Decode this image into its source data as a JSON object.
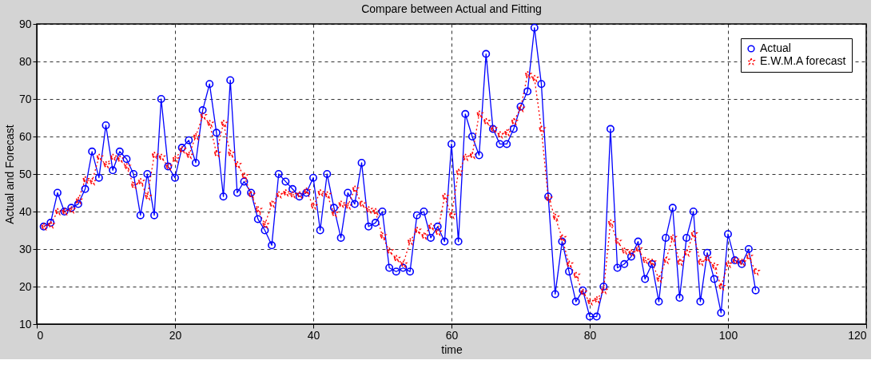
{
  "chart_data": {
    "type": "line",
    "title": "Compare between Actual and Fitting",
    "xlabel": "time",
    "ylabel": "Actual and Forecast",
    "x": [
      1,
      2,
      3,
      4,
      5,
      6,
      7,
      8,
      9,
      10,
      11,
      12,
      13,
      14,
      15,
      16,
      17,
      18,
      19,
      20,
      21,
      22,
      23,
      24,
      25,
      26,
      27,
      28,
      29,
      30,
      31,
      32,
      33,
      34,
      35,
      36,
      37,
      38,
      39,
      40,
      41,
      42,
      43,
      44,
      45,
      46,
      47,
      48,
      49,
      50,
      51,
      52,
      53,
      54,
      55,
      56,
      57,
      58,
      59,
      60,
      61,
      62,
      63,
      64,
      65,
      66,
      67,
      68,
      69,
      70,
      71,
      72,
      73,
      74,
      75,
      76,
      77,
      78,
      79,
      80,
      81,
      82,
      83,
      84,
      85,
      86,
      87,
      88,
      89,
      90,
      91,
      92,
      93,
      94,
      95,
      96,
      97,
      98,
      99,
      100,
      101,
      102,
      103,
      104
    ],
    "series": [
      {
        "name": "Actual",
        "color": "#0000ff",
        "marker": "circle",
        "line_style": "solid",
        "values": [
          36,
          37,
          45,
          40,
          41,
          42,
          46,
          56,
          49,
          63,
          51,
          56,
          54,
          50,
          39,
          50,
          39,
          70,
          52,
          49,
          57,
          59,
          53,
          67,
          74,
          61,
          44,
          75,
          45,
          48,
          45,
          38,
          35,
          31,
          50,
          48,
          46,
          44,
          45,
          49,
          35,
          50,
          41,
          33,
          45,
          42,
          53,
          36,
          37,
          40,
          25,
          24,
          25,
          24,
          39,
          40,
          33,
          36,
          32,
          58,
          32,
          66,
          60,
          55,
          82,
          62,
          58,
          58,
          62,
          68,
          72,
          89,
          74,
          44,
          18,
          32,
          24,
          16,
          19,
          12,
          12,
          20,
          62,
          25,
          26,
          28,
          32,
          22,
          26,
          16,
          33,
          41,
          17,
          33,
          40,
          16,
          29,
          22,
          13,
          34,
          27,
          26,
          30,
          19
        ]
      },
      {
        "name": "E.W.M.A forecast",
        "color": "#ff0000",
        "marker": "star",
        "line_style": "dotted",
        "values": [
          36,
          36.5,
          40,
          40,
          40.5,
          43,
          48.5,
          48,
          54.5,
          52.5,
          54.5,
          54,
          52,
          47,
          48,
          44,
          55,
          54.5,
          52,
          54,
          56.5,
          55,
          60,
          65.5,
          63.5,
          55.5,
          63.5,
          55.5,
          52.5,
          49.5,
          44.5,
          40.5,
          36.5,
          42,
          44.5,
          45,
          44.5,
          44.5,
          45.5,
          41.5,
          45,
          44.5,
          39.5,
          42,
          41.5,
          46,
          42,
          40.5,
          40,
          33.5,
          29.5,
          27.5,
          26,
          32,
          35,
          33.5,
          36,
          34.5,
          44,
          39,
          50.5,
          54.5,
          55,
          66,
          64,
          62,
          60.5,
          61,
          64,
          67.5,
          76.5,
          75.5,
          62,
          43.5,
          38.5,
          33,
          26,
          23,
          18.5,
          16,
          16.5,
          19,
          37,
          32,
          29.5,
          29,
          30,
          27,
          26.5,
          22,
          27,
          33,
          26.5,
          29,
          34,
          26.5,
          27.5,
          25.5,
          20,
          26,
          27,
          26.5,
          28,
          24
        ]
      }
    ],
    "xlim": [
      0,
      120
    ],
    "xticks": [
      0,
      20,
      40,
      60,
      80,
      100,
      120
    ],
    "ylim": [
      10,
      90
    ],
    "yticks": [
      10,
      20,
      30,
      40,
      50,
      60,
      70,
      80,
      90
    ],
    "grid": true,
    "legend": "top right"
  }
}
